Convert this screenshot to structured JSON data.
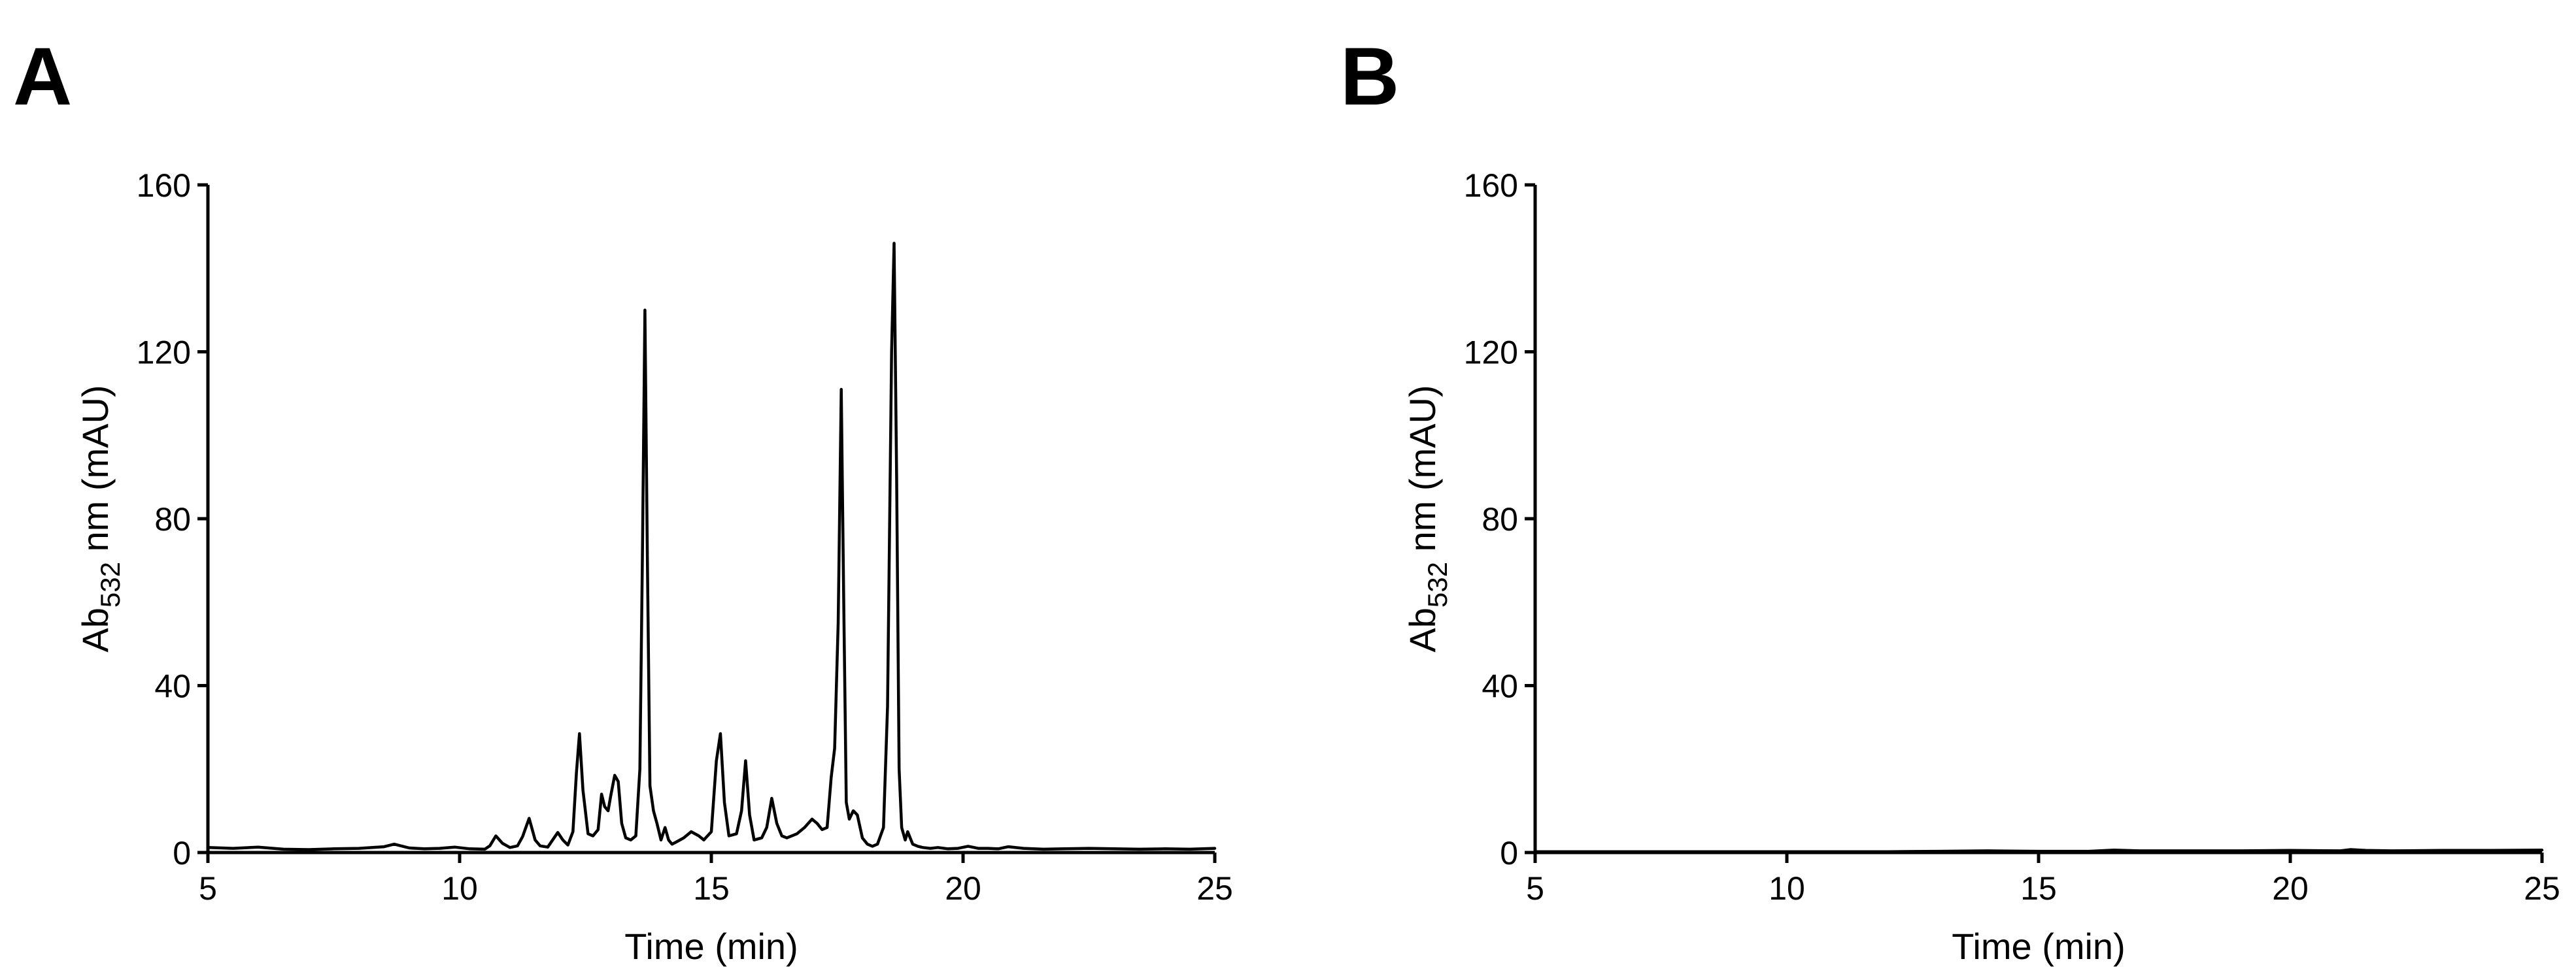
{
  "panels": [
    {
      "letter": "A",
      "xlabel": "Time (min)",
      "ylabel_main": "Ab",
      "ylabel_sub": "532",
      "ylabel_rest": " nm (mAU)"
    },
    {
      "letter": "B",
      "xlabel": "Time (min)",
      "ylabel_main": "Ab",
      "ylabel_sub": "532",
      "ylabel_rest": " nm (mAU)"
    }
  ],
  "chart_data": [
    {
      "type": "line",
      "title": "",
      "xlabel": "Time (min)",
      "ylabel": "Ab532 nm (mAU)",
      "xlim": [
        5,
        25
      ],
      "ylim": [
        0,
        160
      ],
      "xticks": [
        5,
        10,
        15,
        20,
        25
      ],
      "yticks": [
        0,
        40,
        80,
        120,
        160
      ],
      "grid": false,
      "series": [
        {
          "color": "#000000",
          "x": [
            5.0,
            5.5,
            6.0,
            6.5,
            7.0,
            7.5,
            8.0,
            8.5,
            8.7,
            9.0,
            9.3,
            9.6,
            9.9,
            10.2,
            10.5,
            10.6,
            10.72,
            10.85,
            11.0,
            11.15,
            11.25,
            11.38,
            11.5,
            11.6,
            11.75,
            11.95,
            12.05,
            12.15,
            12.25,
            12.32,
            12.38,
            12.45,
            12.55,
            12.65,
            12.75,
            12.82,
            12.88,
            12.95,
            13.0,
            13.08,
            13.15,
            13.22,
            13.3,
            13.4,
            13.5,
            13.58,
            13.63,
            13.68,
            13.73,
            13.78,
            13.85,
            13.92,
            14.0,
            14.08,
            14.15,
            14.22,
            14.3,
            14.45,
            14.6,
            14.75,
            14.85,
            15.0,
            15.1,
            15.18,
            15.26,
            15.35,
            15.5,
            15.6,
            15.68,
            15.76,
            15.85,
            16.0,
            16.1,
            16.2,
            16.3,
            16.4,
            16.5,
            16.7,
            16.85,
            17.0,
            17.1,
            17.2,
            17.3,
            17.38,
            17.45,
            17.52,
            17.58,
            17.63,
            17.68,
            17.74,
            17.82,
            17.9,
            18.0,
            18.1,
            18.2,
            18.3,
            18.42,
            18.5,
            18.58,
            18.63,
            18.68,
            18.73,
            18.78,
            18.85,
            18.9,
            19.0,
            19.1,
            19.2,
            19.35,
            19.5,
            19.7,
            19.9,
            20.1,
            20.3,
            20.5,
            20.7,
            20.9,
            21.2,
            21.6,
            22.0,
            22.5,
            23.0,
            23.5,
            24.0,
            24.5,
            25.0
          ],
          "y": [
            1.2,
            1.0,
            1.3,
            0.8,
            0.7,
            0.9,
            1.0,
            1.4,
            2.0,
            1.1,
            0.9,
            1.0,
            1.3,
            0.9,
            0.8,
            1.6,
            4.0,
            2.2,
            1.2,
            1.6,
            3.8,
            8.2,
            3.0,
            1.6,
            1.3,
            4.8,
            3.0,
            1.8,
            5.0,
            19.0,
            28.5,
            15.0,
            4.5,
            4.0,
            5.5,
            14.0,
            11.0,
            10.0,
            13.5,
            18.5,
            17.0,
            7.0,
            3.5,
            3.0,
            4.0,
            20.0,
            70.0,
            130.0,
            70.0,
            16.0,
            10.0,
            7.0,
            3.0,
            6.0,
            3.0,
            2.0,
            2.5,
            3.5,
            5.0,
            4.0,
            3.0,
            5.0,
            22.0,
            28.5,
            12.0,
            4.0,
            4.5,
            10.0,
            22.0,
            9.0,
            3.0,
            3.5,
            6.0,
            13.0,
            7.0,
            4.0,
            3.5,
            4.5,
            6.0,
            8.0,
            7.0,
            5.5,
            6.0,
            18.0,
            25.0,
            55.0,
            111.0,
            60.0,
            12.0,
            8.0,
            10.0,
            9.0,
            3.5,
            2.0,
            1.5,
            2.0,
            6.0,
            35.0,
            120.0,
            146.0,
            90.0,
            20.0,
            6.0,
            3.0,
            5.0,
            2.0,
            1.5,
            1.2,
            1.0,
            1.2,
            0.9,
            1.0,
            1.5,
            1.0,
            1.0,
            0.9,
            1.4,
            1.0,
            0.8,
            0.9,
            1.0,
            0.9,
            0.8,
            0.9,
            0.8,
            1.0
          ]
        }
      ]
    },
    {
      "type": "line",
      "title": "",
      "xlabel": "Time (min)",
      "ylabel": "Ab532 nm (mAU)",
      "xlim": [
        5,
        25
      ],
      "ylim": [
        0,
        160
      ],
      "xticks": [
        5,
        10,
        15,
        20,
        25
      ],
      "yticks": [
        0,
        40,
        80,
        120,
        160
      ],
      "grid": false,
      "series": [
        {
          "color": "#000000",
          "x": [
            5.0,
            6.0,
            7.0,
            8.0,
            9.0,
            10.0,
            11.0,
            12.0,
            13.0,
            14.0,
            15.0,
            16.0,
            16.5,
            17.0,
            18.0,
            19.0,
            20.0,
            21.0,
            21.2,
            21.5,
            22.0,
            23.0,
            24.0,
            25.0
          ],
          "y": [
            0.2,
            0.2,
            0.2,
            0.2,
            0.2,
            0.2,
            0.2,
            0.2,
            0.3,
            0.4,
            0.3,
            0.3,
            0.6,
            0.4,
            0.4,
            0.4,
            0.5,
            0.4,
            0.7,
            0.5,
            0.4,
            0.5,
            0.5,
            0.6
          ]
        }
      ]
    }
  ]
}
